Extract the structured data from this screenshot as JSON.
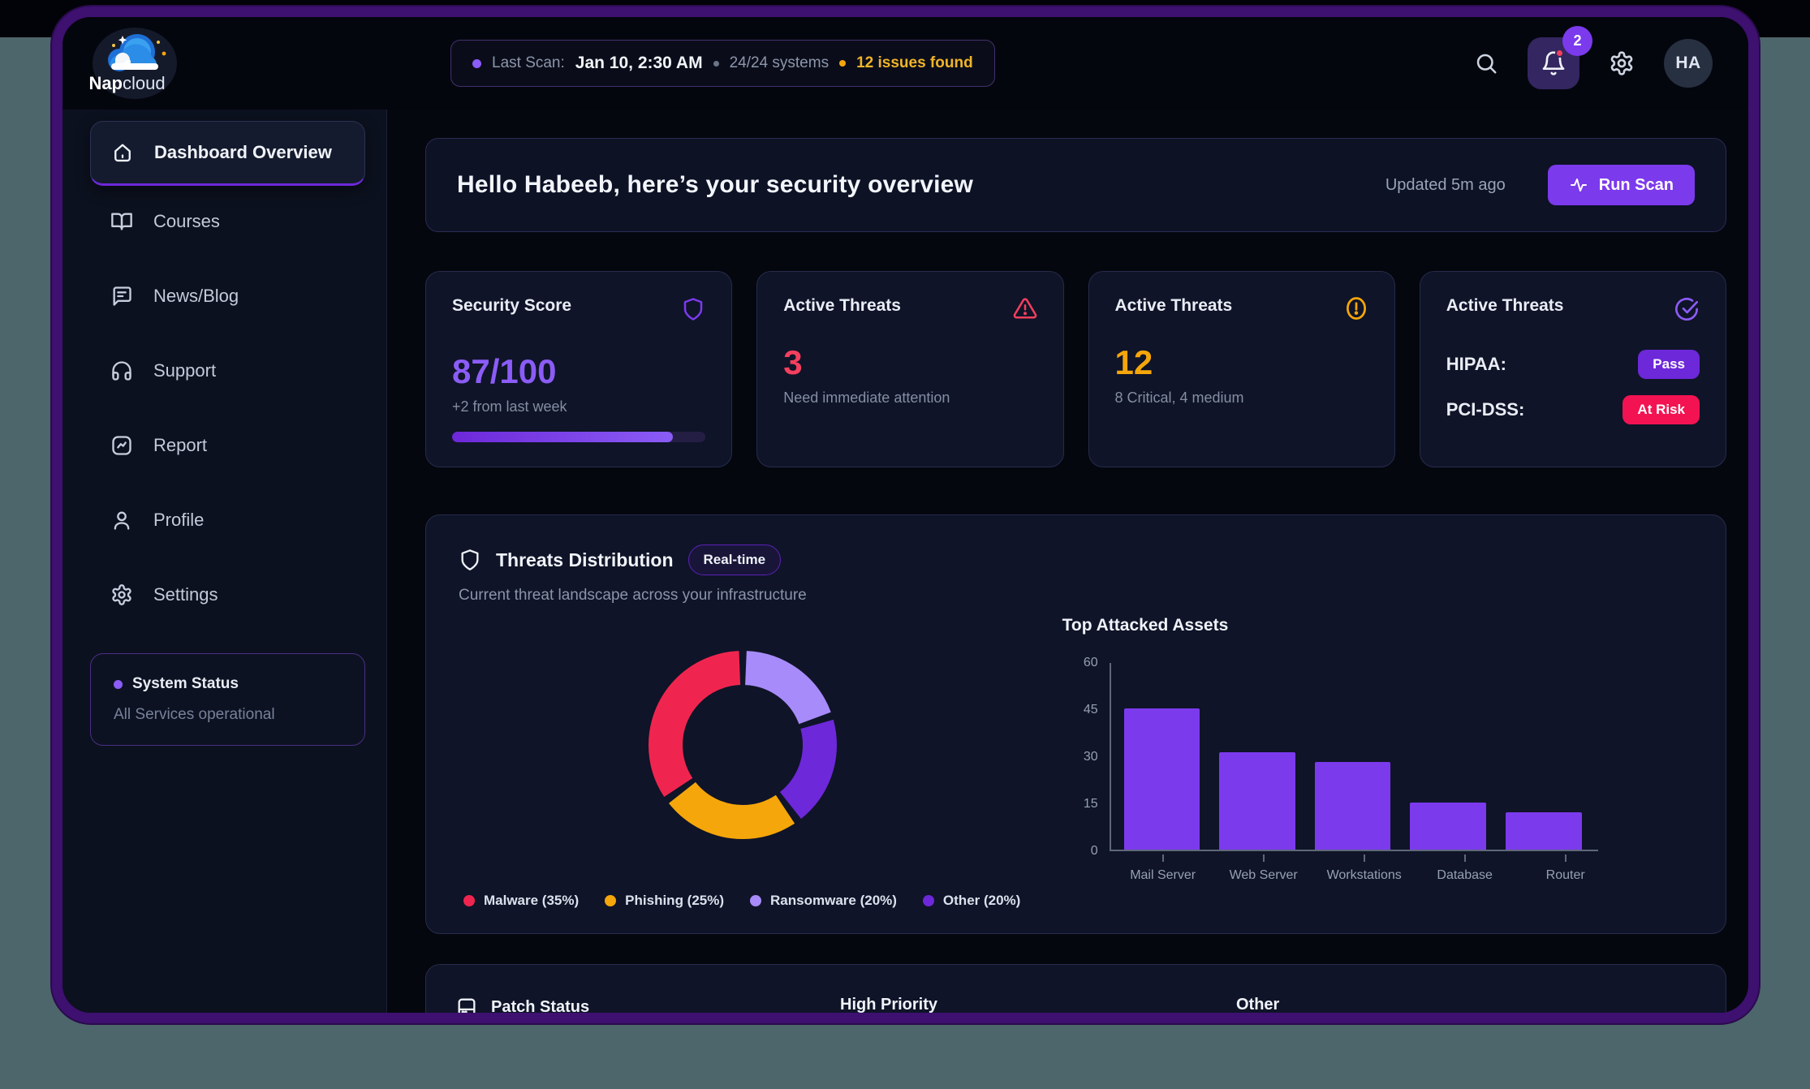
{
  "brand": {
    "name_bold": "Nap",
    "name_light": "cloud"
  },
  "topbar": {
    "last_scan_label": "Last Scan:",
    "last_scan_value": "Jan 10, 2:30 AM",
    "systems_text": "24/24 systems",
    "issues_text": "12 issues found",
    "notification_count": "2",
    "avatar_initials": "HA"
  },
  "sidebar": {
    "items": [
      {
        "label": "Dashboard Overview",
        "active": true
      },
      {
        "label": "Courses"
      },
      {
        "label": "News/Blog"
      },
      {
        "label": "Support"
      },
      {
        "label": "Report"
      },
      {
        "label": "Profile"
      },
      {
        "label": "Settings"
      }
    ],
    "status_title": "System Status",
    "status_text": "All Services operational"
  },
  "hero": {
    "title": "Hello Habeeb, here’s your security overview",
    "updated": "Updated 5m ago",
    "run_scan_label": "Run Scan"
  },
  "cards": [
    {
      "title": "Security Score",
      "value": "87/100",
      "subtext": "+2 from last week",
      "progress_pct": 87
    },
    {
      "title": "Active Threats",
      "value": "3",
      "subtext": "Need immediate attention"
    },
    {
      "title": "Active Threats",
      "value": "12",
      "subtext": "8 Critical, 4 medium"
    },
    {
      "title": "Active Threats",
      "rows": [
        {
          "label": "HIPAA:",
          "badge": "Pass"
        },
        {
          "label": "PCI-DSS:",
          "badge": "At Risk"
        }
      ]
    }
  ],
  "threats_section": {
    "title": "Threats Distribution",
    "badge": "Real-time",
    "subtitle": "Current threat landscape across your infrastructure"
  },
  "chart_data": [
    {
      "type": "pie",
      "donut": true,
      "title": "Threats Distribution",
      "labels": [
        "Malware",
        "Phishing",
        "Ransomware",
        "Other"
      ],
      "values": [
        35,
        25,
        20,
        20
      ],
      "colors": [
        "#f0254f",
        "#f5a60a",
        "#a78bfa",
        "#6d28d9"
      ],
      "legend": [
        "Malware (35%)",
        "Phishing (25%)",
        "Ransomware (20%)",
        "Other (20%)"
      ],
      "draw_order_clockwise_from_top": [
        2,
        3,
        1,
        0
      ],
      "legend_position": "bottom"
    },
    {
      "type": "bar",
      "title": "Top Attacked Assets",
      "categories": [
        "Mail Server",
        "Web Server",
        "Workstations",
        "Database",
        "Router"
      ],
      "values": [
        45,
        31,
        28,
        15,
        12
      ],
      "ylim": [
        0,
        60
      ],
      "yticks": [
        0,
        15,
        30,
        45,
        60
      ],
      "bar_color": "#7c3aed",
      "grid": false
    }
  ],
  "patch_section": {
    "title": "Patch Status",
    "col2": "High Priority",
    "col3": "Other"
  },
  "colors": {
    "accent": "#7c3aed",
    "accent_light": "#8b5cf6",
    "danger": "#f43f5e",
    "warning": "#f5a60a",
    "risk_badge": "#f31352",
    "frame_border": "#3e1070"
  }
}
